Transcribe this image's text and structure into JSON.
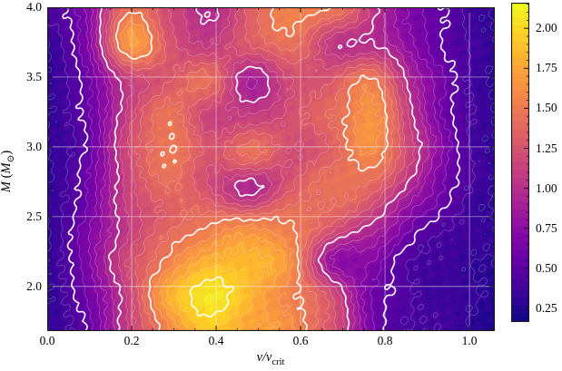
{
  "chart_data": {
    "type": "heatmap",
    "title": "",
    "xlabel": {
      "pre": "v/v",
      "sub": "crit"
    },
    "ylabel": {
      "m": "M",
      "paren_open": " (",
      "m2": "M",
      "sub": "⊙",
      "paren_close": ")"
    },
    "xlim": [
      0.0,
      1.06
    ],
    "ylim": [
      1.68,
      4.0
    ],
    "x": [
      0.0,
      0.1,
      0.19,
      0.29,
      0.39,
      0.48,
      0.58,
      0.67,
      0.77,
      0.87,
      0.96,
      1.06
    ],
    "y": [
      4.0,
      3.74,
      3.49,
      3.23,
      2.98,
      2.72,
      2.47,
      2.21,
      1.96,
      1.7
    ],
    "values": [
      [
        0.4,
        0.75,
        1.45,
        1.2,
        0.95,
        1.35,
        1.55,
        1.5,
        1.05,
        0.65,
        0.45,
        0.3
      ],
      [
        0.32,
        0.7,
        1.7,
        1.25,
        1.1,
        1.3,
        1.45,
        1.05,
        1.0,
        0.7,
        0.45,
        0.3
      ],
      [
        0.3,
        0.6,
        1.1,
        1.3,
        1.4,
        0.9,
        1.2,
        1.3,
        1.5,
        0.9,
        0.5,
        0.3
      ],
      [
        0.3,
        0.55,
        1.15,
        1.45,
        1.15,
        1.1,
        1.25,
        1.4,
        1.65,
        1.0,
        0.5,
        0.3
      ],
      [
        0.3,
        0.55,
        1.2,
        1.5,
        1.25,
        1.45,
        1.2,
        1.35,
        1.6,
        1.1,
        0.55,
        0.3
      ],
      [
        0.3,
        0.6,
        1.15,
        1.4,
        1.2,
        0.95,
        1.3,
        1.45,
        1.35,
        0.9,
        0.5,
        0.3
      ],
      [
        0.3,
        0.65,
        1.1,
        1.35,
        1.5,
        1.55,
        1.5,
        1.3,
        1.0,
        0.6,
        0.4,
        0.3
      ],
      [
        0.3,
        0.7,
        1.2,
        1.55,
        1.8,
        1.85,
        1.6,
        0.8,
        0.7,
        0.4,
        0.35,
        0.3
      ],
      [
        0.3,
        0.6,
        1.15,
        1.8,
        2.1,
        1.8,
        1.55,
        1.2,
        0.6,
        0.4,
        0.35,
        0.25
      ],
      [
        0.3,
        0.55,
        1.1,
        1.6,
        1.9,
        1.75,
        1.6,
        1.25,
        0.6,
        0.4,
        0.35,
        0.25
      ]
    ],
    "xticks": {
      "values": [
        0.0,
        0.2,
        0.4,
        0.6,
        0.8,
        1.0
      ],
      "labels": [
        "0.0",
        "0.2",
        "0.4",
        "0.6",
        "0.8",
        "1.0"
      ],
      "minor_step": 0.05
    },
    "yticks": {
      "values": [
        2.0,
        2.5,
        3.0,
        3.5,
        4.0
      ],
      "labels": [
        "2.0",
        "2.5",
        "3.0",
        "3.5",
        "4.0"
      ],
      "minor_step": 0.1
    },
    "colorbar": {
      "vmin": 0.17,
      "vmax": 2.16,
      "tick_values": [
        0.25,
        0.5,
        0.75,
        1.0,
        1.25,
        1.5,
        1.75,
        2.0
      ],
      "tick_labels": [
        "0.25",
        "0.50",
        "0.75",
        "1.00",
        "1.25",
        "1.50",
        "1.75",
        "2.00"
      ],
      "minor_step": 0.05
    },
    "colormap": {
      "name": "plasma",
      "stops": [
        "#0d0887",
        "#41049d",
        "#6a00a8",
        "#8f0da4",
        "#b12a90",
        "#cc4778",
        "#e16462",
        "#f2844b",
        "#fca636",
        "#fcce25",
        "#f0f921"
      ]
    },
    "quantize_step": 0.05,
    "contours": {
      "thick_levels": [
        0.5,
        1.0,
        1.5,
        2.0
      ],
      "thin_levels": [
        0.2,
        0.3,
        0.4,
        0.6,
        0.7,
        0.8,
        0.9,
        1.1,
        1.2,
        1.3,
        1.4,
        1.6,
        1.7,
        1.8,
        1.9,
        2.1
      ],
      "line_color": "#ffffff"
    },
    "grid": true,
    "grid_color": "#ffffff",
    "spine_color": "#1a1a1a",
    "background": "#ffffff"
  }
}
